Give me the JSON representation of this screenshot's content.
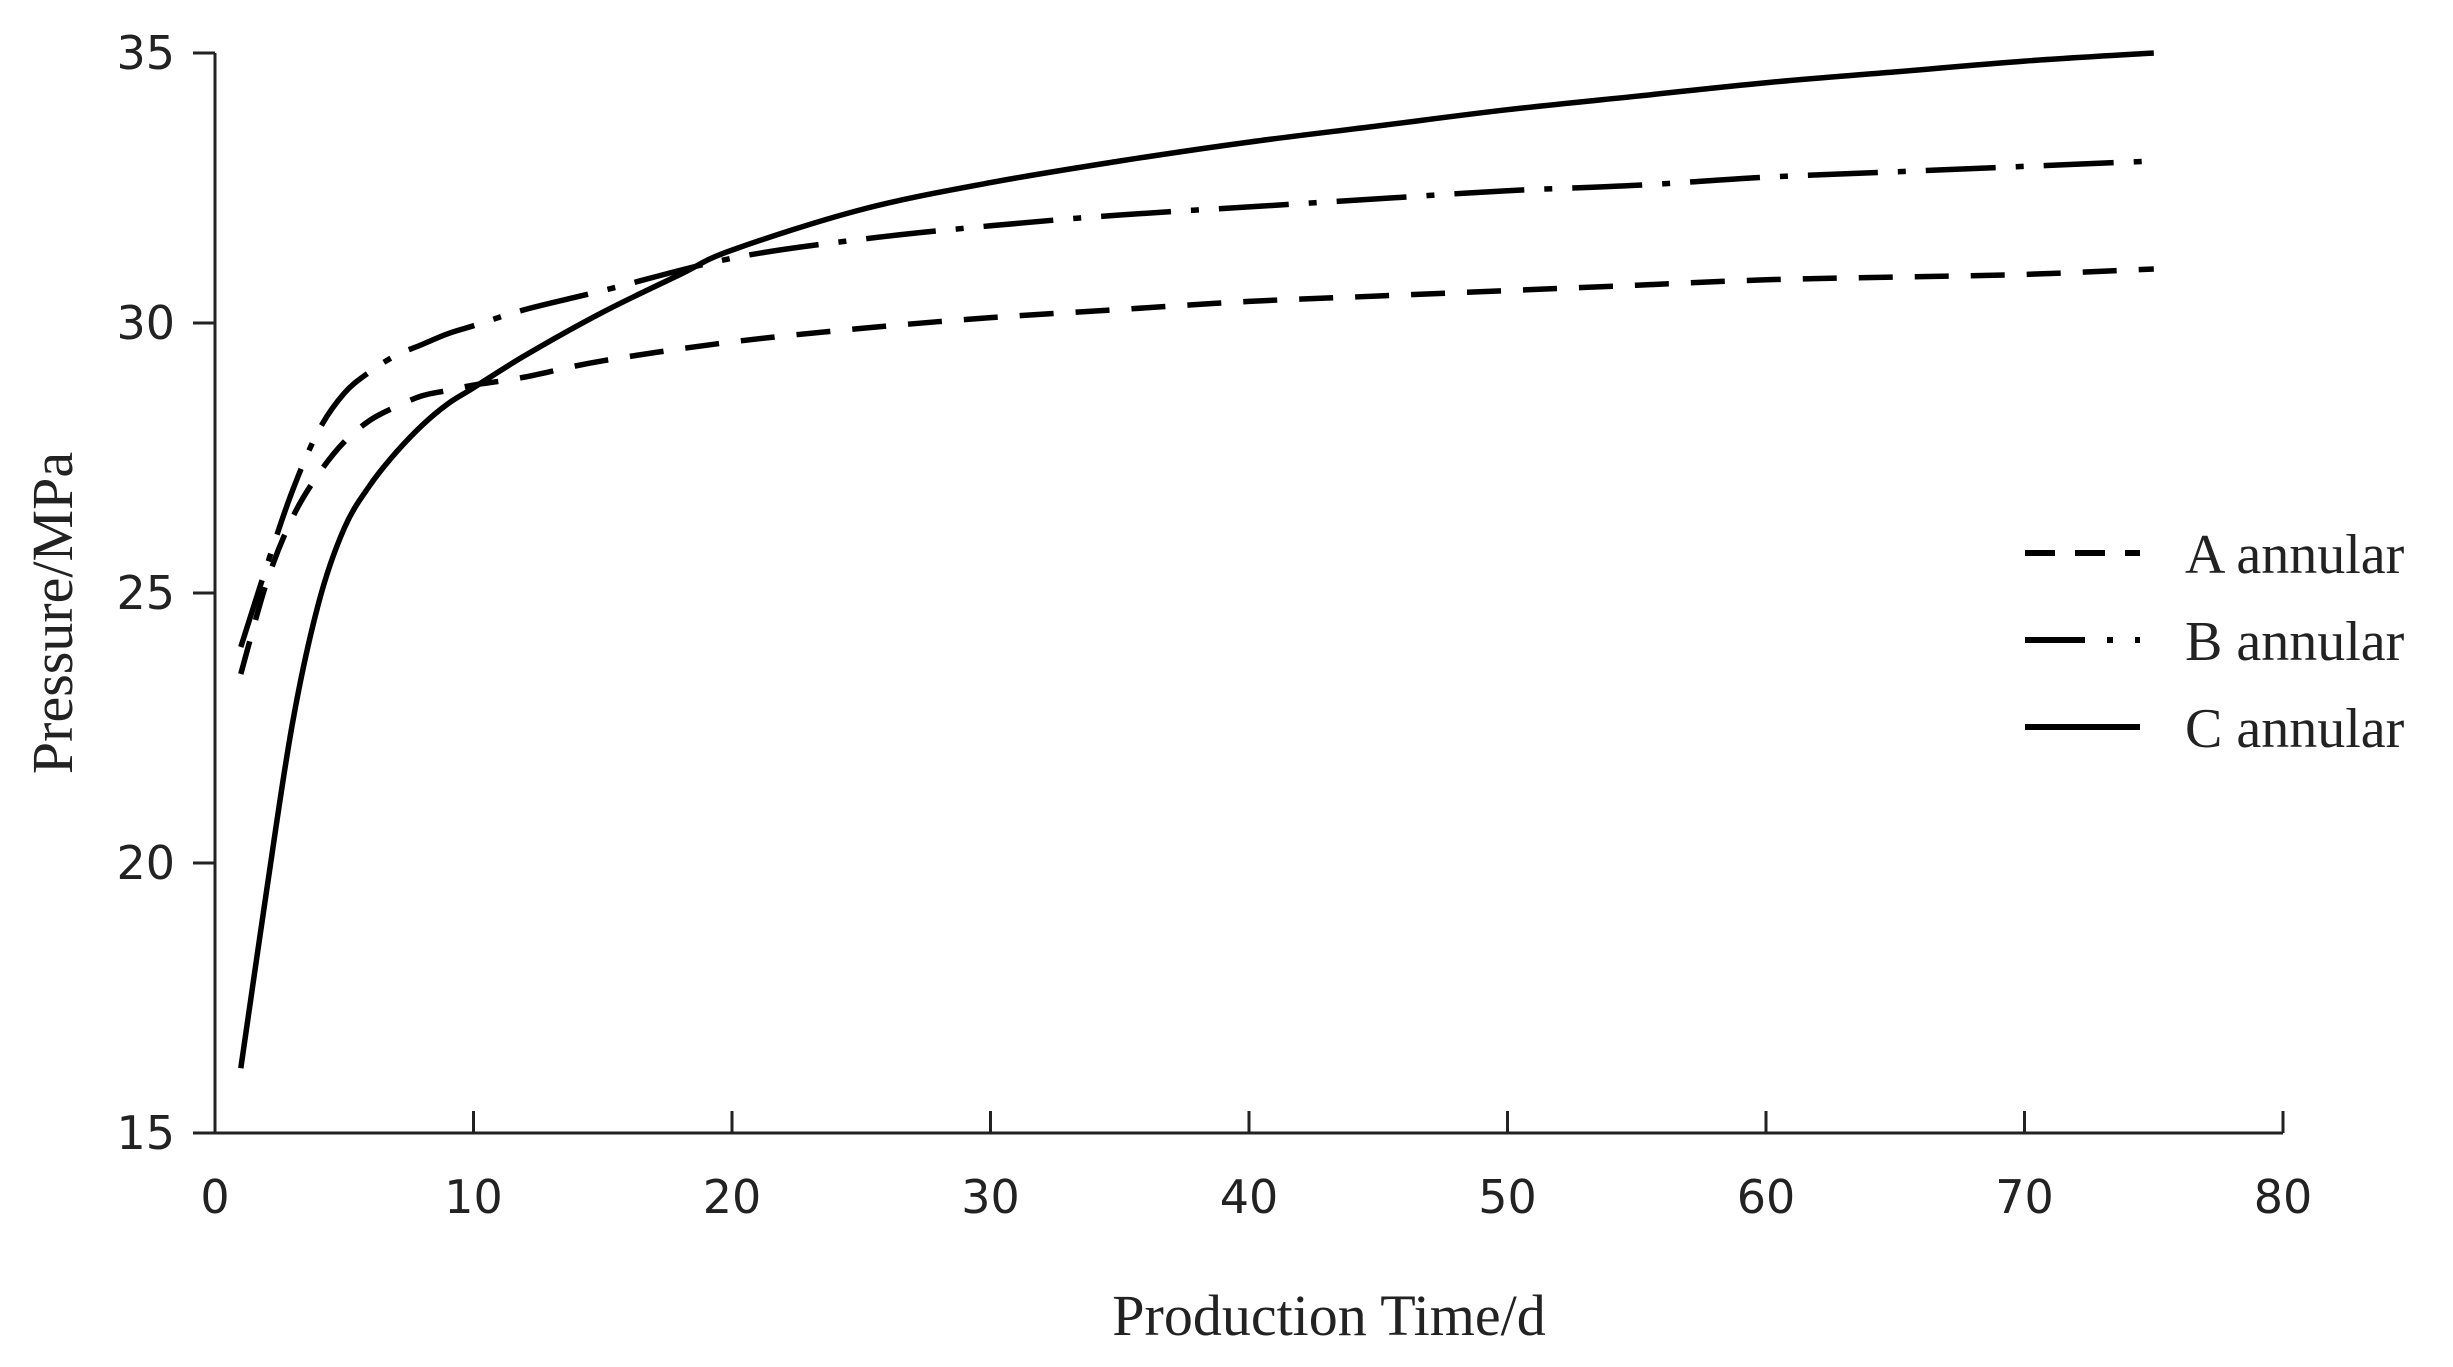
{
  "chart_data": {
    "type": "line",
    "xlabel": "Production Time/d",
    "ylabel": "Pressure/MPa",
    "xlim": [
      0,
      80
    ],
    "ylim": [
      15,
      35
    ],
    "xticks": [
      0,
      10,
      20,
      30,
      40,
      50,
      60,
      70,
      80
    ],
    "yticks": [
      15,
      20,
      25,
      30,
      35
    ],
    "grid": false,
    "legend_position": "right",
    "series": [
      {
        "name": "A annular",
        "line_style": "dashed",
        "color": "#000000",
        "points": [
          [
            1,
            23.5
          ],
          [
            2,
            25.2
          ],
          [
            3,
            26.4
          ],
          [
            4,
            27.2
          ],
          [
            5,
            27.8
          ],
          [
            6,
            28.2
          ],
          [
            7,
            28.45
          ],
          [
            8,
            28.65
          ],
          [
            9,
            28.75
          ],
          [
            10,
            28.85
          ],
          [
            12,
            29.0
          ],
          [
            15,
            29.3
          ],
          [
            20,
            29.65
          ],
          [
            25,
            29.9
          ],
          [
            30,
            30.1
          ],
          [
            35,
            30.25
          ],
          [
            40,
            30.4
          ],
          [
            45,
            30.5
          ],
          [
            50,
            30.6
          ],
          [
            55,
            30.7
          ],
          [
            60,
            30.8
          ],
          [
            65,
            30.85
          ],
          [
            70,
            30.9
          ],
          [
            75,
            31.0
          ]
        ]
      },
      {
        "name": "B annular",
        "line_style": "dash-dot",
        "color": "#000000",
        "points": [
          [
            1,
            24.0
          ],
          [
            2,
            25.5
          ],
          [
            3,
            26.9
          ],
          [
            4,
            28.0
          ],
          [
            5,
            28.7
          ],
          [
            6,
            29.1
          ],
          [
            7,
            29.4
          ],
          [
            8,
            29.6
          ],
          [
            9,
            29.8
          ],
          [
            10,
            29.95
          ],
          [
            12,
            30.25
          ],
          [
            15,
            30.6
          ],
          [
            20,
            31.2
          ],
          [
            25,
            31.55
          ],
          [
            30,
            31.8
          ],
          [
            35,
            32.0
          ],
          [
            40,
            32.15
          ],
          [
            45,
            32.3
          ],
          [
            50,
            32.45
          ],
          [
            55,
            32.55
          ],
          [
            60,
            32.7
          ],
          [
            65,
            32.8
          ],
          [
            70,
            32.9
          ],
          [
            75,
            33.0
          ]
        ]
      },
      {
        "name": "C annular",
        "line_style": "solid",
        "color": "#000000",
        "points": [
          [
            1,
            16.2
          ],
          [
            2,
            19.5
          ],
          [
            3,
            22.6
          ],
          [
            4,
            24.8
          ],
          [
            5,
            26.2
          ],
          [
            6,
            27.0
          ],
          [
            7,
            27.6
          ],
          [
            8,
            28.1
          ],
          [
            9,
            28.5
          ],
          [
            10,
            28.8
          ],
          [
            12,
            29.4
          ],
          [
            15,
            30.2
          ],
          [
            18,
            30.9
          ],
          [
            20,
            31.35
          ],
          [
            25,
            32.1
          ],
          [
            30,
            32.6
          ],
          [
            35,
            33.0
          ],
          [
            40,
            33.35
          ],
          [
            45,
            33.65
          ],
          [
            50,
            33.95
          ],
          [
            55,
            34.2
          ],
          [
            60,
            34.45
          ],
          [
            65,
            34.65
          ],
          [
            70,
            34.85
          ],
          [
            75,
            35.0
          ]
        ]
      }
    ]
  }
}
